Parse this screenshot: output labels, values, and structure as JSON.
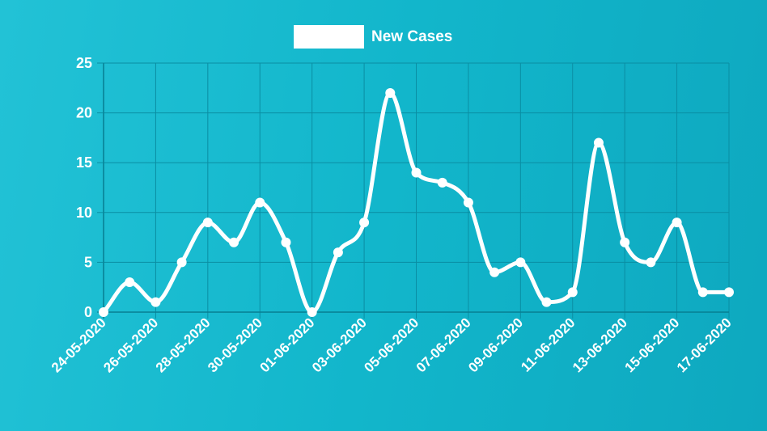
{
  "chart_data": {
    "type": "line",
    "legend": {
      "position": "top-center",
      "entries": [
        "New Cases"
      ]
    },
    "colors": {
      "series": "#ffffff",
      "grid": "#0a8ea3"
    },
    "grid": true,
    "xlabel": "",
    "ylabel": "",
    "ylim": [
      0,
      25
    ],
    "yticks": [
      0,
      5,
      10,
      15,
      20,
      25
    ],
    "x": [
      "24-05-2020",
      "25-05-2020",
      "26-05-2020",
      "27-05-2020",
      "28-05-2020",
      "29-05-2020",
      "30-05-2020",
      "31-05-2020",
      "01-06-2020",
      "02-06-2020",
      "03-06-2020",
      "04-06-2020",
      "05-06-2020",
      "06-06-2020",
      "07-06-2020",
      "08-06-2020",
      "09-06-2020",
      "10-06-2020",
      "11-06-2020",
      "12-06-2020",
      "13-06-2020",
      "14-06-2020",
      "15-06-2020",
      "16-06-2020",
      "17-06-2020"
    ],
    "xtick_labels": [
      "24-05-2020",
      "26-05-2020",
      "28-05-2020",
      "30-05-2020",
      "01-06-2020",
      "03-06-2020",
      "05-06-2020",
      "07-06-2020",
      "09-06-2020",
      "11-06-2020",
      "13-06-2020",
      "15-06-2020",
      "17-06-2020"
    ],
    "series": [
      {
        "name": "New Cases",
        "values": [
          0,
          3,
          1,
          5,
          9,
          7,
          11,
          7,
          0,
          6,
          9,
          22,
          14,
          13,
          11,
          4,
          5,
          1,
          2,
          17,
          7,
          5,
          9,
          2,
          2
        ]
      }
    ]
  }
}
